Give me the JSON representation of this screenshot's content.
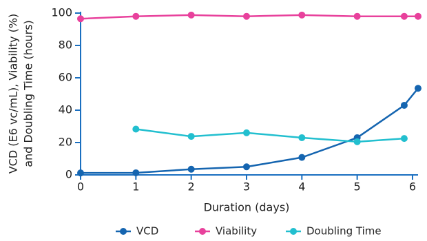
{
  "chart_data": {
    "type": "line",
    "x_label": "Duration (days)",
    "y_label": [
      "VCD (E6 vc/mL), Viability (%)",
      "and Doubling Time (hours)"
    ],
    "x": [
      0,
      1,
      2,
      3,
      4,
      5,
      5.85,
      6.1
    ],
    "series": [
      {
        "name": "VCD",
        "color": "#1565b0",
        "values": [
          1.2,
          1.3,
          3.5,
          5,
          10.8,
          23,
          43,
          53.5
        ]
      },
      {
        "name": "Viability",
        "color": "#e8419c",
        "values": [
          96.5,
          98,
          98.8,
          98,
          98.8,
          98,
          98,
          98
        ]
      },
      {
        "name": "Doubling Time",
        "color": "#22bfcf",
        "values": [
          null,
          28.3,
          23.8,
          26,
          23,
          20.5,
          22.5,
          null
        ]
      }
    ],
    "xlim": [
      0,
      6.1
    ],
    "xticks": [
      0,
      1,
      2,
      3,
      4,
      5,
      6
    ],
    "ylim": [
      0,
      100
    ],
    "yticks": [
      0,
      20,
      40,
      60,
      80,
      100
    ],
    "legend": "bottom"
  }
}
